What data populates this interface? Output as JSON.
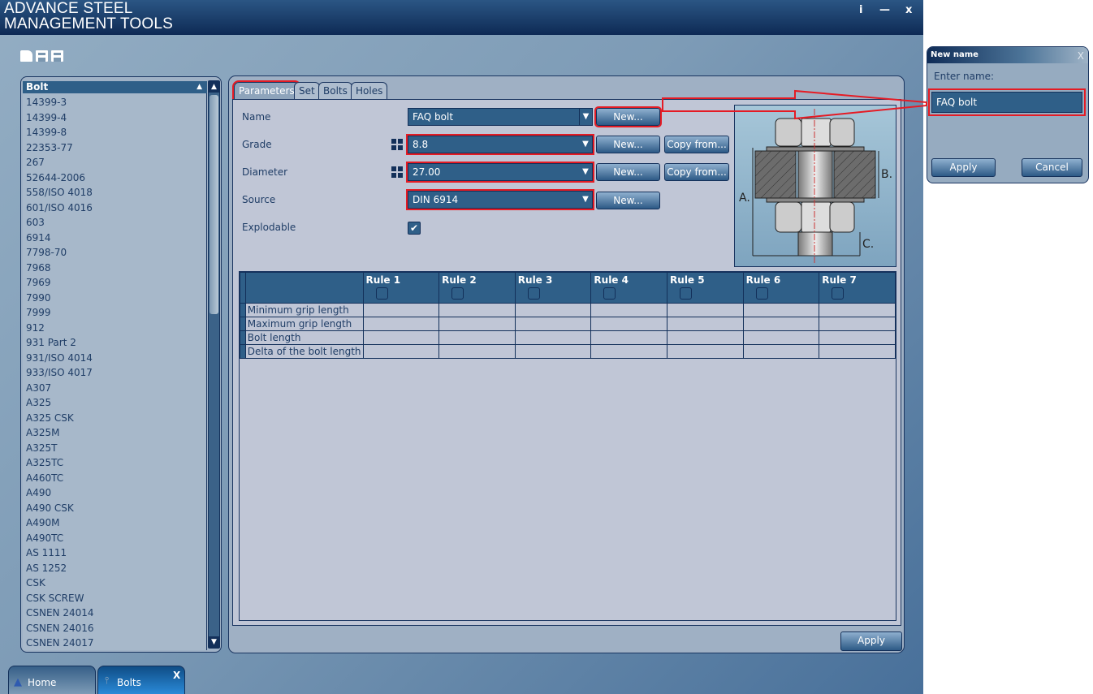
{
  "app": {
    "title_line1": "ADVANCE STEEL",
    "title_line2": "MANAGEMENT TOOLS",
    "window_buttons": {
      "info": "i",
      "minimize": "—",
      "close": "x"
    }
  },
  "toolbar": {
    "icons": [
      "open-folder-icon",
      "save-icon",
      "save-as-icon"
    ]
  },
  "list": {
    "header": "Bolt",
    "items": [
      "14399-3",
      "14399-4",
      "14399-8",
      "22353-77",
      "267",
      "52644-2006",
      "558/ISO 4018",
      "601/ISO 4016",
      "603",
      "6914",
      "7798-70",
      "7968",
      "7969",
      "7990",
      "7999",
      "912",
      "931 Part 2",
      "931/ISO 4014",
      "933/ISO 4017",
      "A307",
      "A325",
      "A325 CSK",
      "A325M",
      "A325T",
      "A325TC",
      "A460TC",
      "A490",
      "A490 CSK",
      "A490M",
      "A490TC",
      "AS 1111",
      "AS 1252",
      "CSK",
      "CSK SCREW",
      "CSNEN 24014",
      "CSNEN 24016",
      "CSNEN 24017"
    ]
  },
  "tabs": [
    {
      "label": "Parameters",
      "active": true
    },
    {
      "label": "Set"
    },
    {
      "label": "Bolts"
    },
    {
      "label": "Holes"
    }
  ],
  "form": {
    "name": {
      "label": "Name",
      "value": "FAQ bolt",
      "new": "New..."
    },
    "grade": {
      "label": "Grade",
      "value": "8.8",
      "new": "New...",
      "copy": "Copy from..."
    },
    "diameter": {
      "label": "Diameter",
      "value": "27.00",
      "new": "New...",
      "copy": "Copy from..."
    },
    "source": {
      "label": "Source",
      "value": "DIN 6914",
      "new": "New..."
    },
    "explodable": {
      "label": "Explodable",
      "checked": true,
      "mark": "✔"
    }
  },
  "diagram": {
    "labels": {
      "a": "A.",
      "b": "B.",
      "c": "C."
    }
  },
  "rules_table": {
    "columns": [
      "Rule 1",
      "Rule 2",
      "Rule 3",
      "Rule 4",
      "Rule 5",
      "Rule 6",
      "Rule 7"
    ],
    "rows": [
      "Minimum grip length",
      "Maximum grip length",
      "Bolt length",
      "Delta of the bolt length"
    ]
  },
  "apply": "Apply",
  "bottom_tabs": [
    {
      "label": "Home"
    },
    {
      "label": "Bolts",
      "close": "X"
    }
  ],
  "dialog": {
    "title": "New name",
    "close": "X",
    "prompt": "Enter name:",
    "value": "FAQ bolt",
    "apply": "Apply",
    "cancel": "Cancel"
  },
  "colors": {
    "highlight": "#e51b24",
    "accent": "#2f5f88",
    "title_bar": "#0e2a55"
  }
}
